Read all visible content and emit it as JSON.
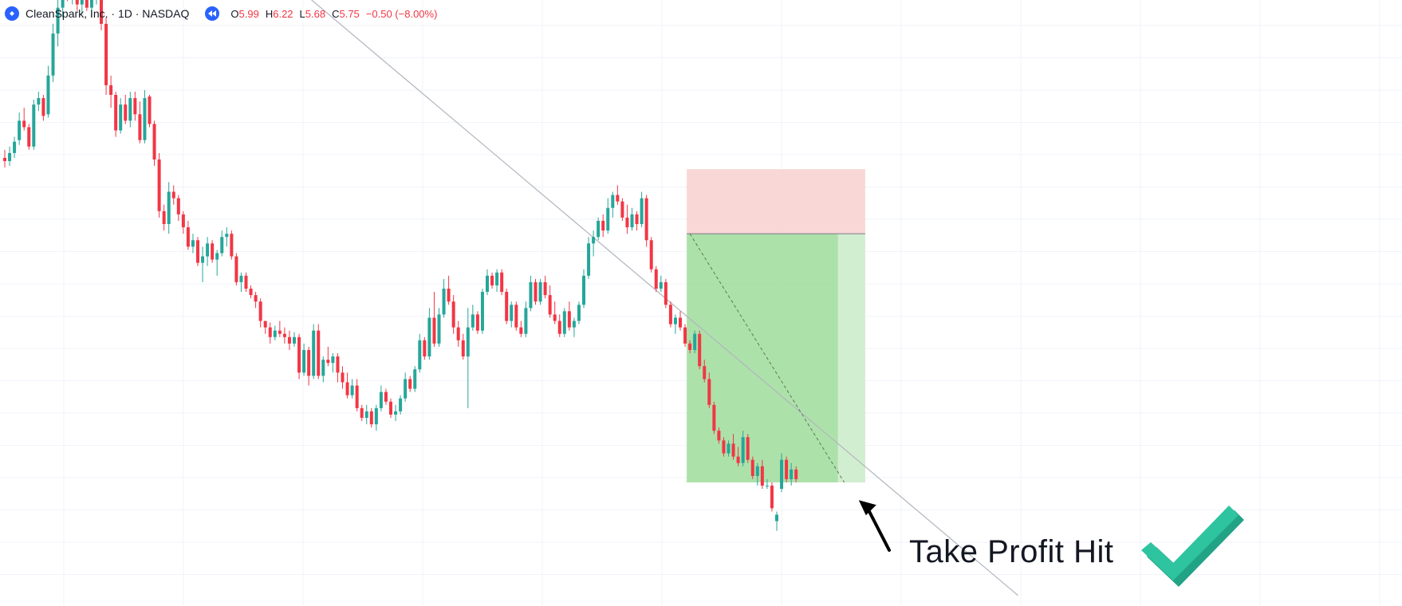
{
  "header": {
    "symbol": "CleanSpark, Inc. · 1D · NASDAQ",
    "ohlc": {
      "open_label": "O",
      "open": "5.99",
      "high_label": "H",
      "high": "6.22",
      "low_label": "L",
      "low": "5.68",
      "close_label": "C",
      "close": "5.75",
      "change": "−0.50 (−8.00%)"
    }
  },
  "annotation": {
    "text": "Take Profit Hit"
  },
  "colors": {
    "up": "#26a69a",
    "down": "#f23645",
    "stop_zone": "#f8c9c9",
    "profit_zone": "#9fdc9b",
    "trendline": "#b2b5be",
    "check": "#2ec4a0",
    "check_dark": "#22a386"
  },
  "chart_data": {
    "type": "candlestick",
    "title": "CleanSpark, Inc. · 1D · NASDAQ",
    "y_scale": "price",
    "grid": true,
    "candles": [
      {
        "o": 10.05,
        "h": 10.3,
        "l": 9.75,
        "c": 9.95
      },
      {
        "o": 9.95,
        "h": 10.4,
        "l": 9.8,
        "c": 10.2
      },
      {
        "o": 10.2,
        "h": 10.7,
        "l": 10.05,
        "c": 10.55
      },
      {
        "o": 10.6,
        "h": 11.45,
        "l": 10.45,
        "c": 11.2
      },
      {
        "o": 11.2,
        "h": 11.6,
        "l": 10.9,
        "c": 11.0
      },
      {
        "o": 11.0,
        "h": 11.1,
        "l": 10.3,
        "c": 10.4
      },
      {
        "o": 10.4,
        "h": 11.85,
        "l": 10.3,
        "c": 11.7
      },
      {
        "o": 11.7,
        "h": 12.1,
        "l": 11.5,
        "c": 11.9
      },
      {
        "o": 11.9,
        "h": 12.0,
        "l": 11.2,
        "c": 11.35
      },
      {
        "o": 11.4,
        "h": 12.9,
        "l": 11.3,
        "c": 12.6
      },
      {
        "o": 12.6,
        "h": 14.2,
        "l": 12.4,
        "c": 13.9
      },
      {
        "o": 13.9,
        "h": 15.1,
        "l": 13.5,
        "c": 14.7
      },
      {
        "o": 14.7,
        "h": 15.5,
        "l": 14.4,
        "c": 15.3
      },
      {
        "o": 15.3,
        "h": 15.8,
        "l": 14.9,
        "c": 15.1
      },
      {
        "o": 15.1,
        "h": 15.7,
        "l": 14.8,
        "c": 15.4
      },
      {
        "o": 15.4,
        "h": 15.6,
        "l": 14.6,
        "c": 14.8
      },
      {
        "o": 14.8,
        "h": 15.5,
        "l": 14.5,
        "c": 15.2
      },
      {
        "o": 15.2,
        "h": 15.4,
        "l": 14.6,
        "c": 14.7
      },
      {
        "o": 14.7,
        "h": 15.3,
        "l": 14.4,
        "c": 15.1
      },
      {
        "o": 15.1,
        "h": 15.6,
        "l": 14.8,
        "c": 15.4
      },
      {
        "o": 15.4,
        "h": 15.5,
        "l": 14.0,
        "c": 14.2
      },
      {
        "o": 14.2,
        "h": 14.4,
        "l": 12.0,
        "c": 12.3
      },
      {
        "o": 12.3,
        "h": 12.6,
        "l": 11.6,
        "c": 12.0
      },
      {
        "o": 12.0,
        "h": 12.1,
        "l": 10.7,
        "c": 10.9
      },
      {
        "o": 10.9,
        "h": 11.9,
        "l": 10.8,
        "c": 11.7
      },
      {
        "o": 11.7,
        "h": 12.0,
        "l": 11.1,
        "c": 11.2
      },
      {
        "o": 11.2,
        "h": 12.1,
        "l": 11.0,
        "c": 11.9
      },
      {
        "o": 11.9,
        "h": 12.1,
        "l": 11.2,
        "c": 11.4
      },
      {
        "o": 11.4,
        "h": 11.8,
        "l": 10.5,
        "c": 10.6
      },
      {
        "o": 10.6,
        "h": 12.15,
        "l": 10.5,
        "c": 11.9
      },
      {
        "o": 11.95,
        "h": 12.0,
        "l": 11.0,
        "c": 11.1
      },
      {
        "o": 11.1,
        "h": 11.2,
        "l": 9.8,
        "c": 10.0
      },
      {
        "o": 10.0,
        "h": 10.2,
        "l": 8.2,
        "c": 8.4
      },
      {
        "o": 8.4,
        "h": 8.6,
        "l": 7.8,
        "c": 8.0
      },
      {
        "o": 8.0,
        "h": 9.3,
        "l": 7.7,
        "c": 9.0
      },
      {
        "o": 9.0,
        "h": 9.2,
        "l": 8.6,
        "c": 8.8
      },
      {
        "o": 8.8,
        "h": 8.9,
        "l": 8.1,
        "c": 8.3
      },
      {
        "o": 8.3,
        "h": 8.4,
        "l": 7.7,
        "c": 7.9
      },
      {
        "o": 7.9,
        "h": 8.1,
        "l": 7.2,
        "c": 7.3
      },
      {
        "o": 7.3,
        "h": 7.7,
        "l": 7.1,
        "c": 7.5
      },
      {
        "o": 7.5,
        "h": 7.6,
        "l": 6.7,
        "c": 6.8
      },
      {
        "o": 6.8,
        "h": 7.3,
        "l": 6.2,
        "c": 7.0
      },
      {
        "o": 7.0,
        "h": 7.6,
        "l": 6.7,
        "c": 7.4
      },
      {
        "o": 7.4,
        "h": 7.5,
        "l": 6.8,
        "c": 6.9
      },
      {
        "o": 6.9,
        "h": 7.2,
        "l": 6.4,
        "c": 7.1
      },
      {
        "o": 7.1,
        "h": 7.8,
        "l": 7.0,
        "c": 7.6
      },
      {
        "o": 7.6,
        "h": 7.9,
        "l": 7.3,
        "c": 7.7
      },
      {
        "o": 7.7,
        "h": 7.8,
        "l": 6.9,
        "c": 7.0
      },
      {
        "o": 7.0,
        "h": 7.1,
        "l": 6.1,
        "c": 6.2
      },
      {
        "o": 6.2,
        "h": 6.5,
        "l": 5.9,
        "c": 6.4
      },
      {
        "o": 6.4,
        "h": 6.5,
        "l": 5.9,
        "c": 6.0
      },
      {
        "o": 6.0,
        "h": 6.1,
        "l": 5.7,
        "c": 5.8
      },
      {
        "o": 5.8,
        "h": 5.9,
        "l": 5.4,
        "c": 5.6
      },
      {
        "o": 5.6,
        "h": 5.7,
        "l": 4.8,
        "c": 5.0
      },
      {
        "o": 5.0,
        "h": 4.9,
        "l": 4.6,
        "c": 4.8
      },
      {
        "o": 4.8,
        "h": 4.95,
        "l": 4.3,
        "c": 4.5
      },
      {
        "o": 4.5,
        "h": 4.85,
        "l": 4.4,
        "c": 4.7
      },
      {
        "o": 4.7,
        "h": 5.0,
        "l": 4.5,
        "c": 4.6
      },
      {
        "o": 4.6,
        "h": 4.8,
        "l": 4.3,
        "c": 4.5
      },
      {
        "o": 4.5,
        "h": 4.7,
        "l": 4.1,
        "c": 4.3
      },
      {
        "o": 4.3,
        "h": 4.65,
        "l": 4.2,
        "c": 4.5
      },
      {
        "o": 4.5,
        "h": 4.6,
        "l": 3.2,
        "c": 3.4
      },
      {
        "o": 3.4,
        "h": 4.3,
        "l": 3.3,
        "c": 4.1
      },
      {
        "o": 4.1,
        "h": 4.2,
        "l": 3.0,
        "c": 3.3
      },
      {
        "o": 3.3,
        "h": 4.9,
        "l": 3.2,
        "c": 4.7
      },
      {
        "o": 4.7,
        "h": 4.9,
        "l": 3.2,
        "c": 3.3
      },
      {
        "o": 3.3,
        "h": 3.9,
        "l": 3.1,
        "c": 3.8
      },
      {
        "o": 3.8,
        "h": 4.2,
        "l": 3.6,
        "c": 3.7
      },
      {
        "o": 3.7,
        "h": 4.0,
        "l": 3.4,
        "c": 3.9
      },
      {
        "o": 3.9,
        "h": 4.0,
        "l": 3.1,
        "c": 3.4
      },
      {
        "o": 3.4,
        "h": 3.6,
        "l": 2.9,
        "c": 3.1
      },
      {
        "o": 3.1,
        "h": 3.4,
        "l": 2.6,
        "c": 2.7
      },
      {
        "o": 2.7,
        "h": 3.2,
        "l": 2.6,
        "c": 3.0
      },
      {
        "o": 3.0,
        "h": 3.2,
        "l": 2.2,
        "c": 2.3
      },
      {
        "o": 2.3,
        "h": 2.4,
        "l": 1.9,
        "c": 2.0
      },
      {
        "o": 2.0,
        "h": 2.4,
        "l": 1.8,
        "c": 2.2
      },
      {
        "o": 2.2,
        "h": 2.3,
        "l": 1.7,
        "c": 1.8
      },
      {
        "o": 1.8,
        "h": 2.4,
        "l": 1.6,
        "c": 2.3
      },
      {
        "o": 2.3,
        "h": 3.0,
        "l": 2.2,
        "c": 2.8
      },
      {
        "o": 2.8,
        "h": 2.9,
        "l": 2.4,
        "c": 2.5
      },
      {
        "o": 2.5,
        "h": 2.6,
        "l": 2.0,
        "c": 2.1
      },
      {
        "o": 2.1,
        "h": 2.4,
        "l": 1.9,
        "c": 2.2
      },
      {
        "o": 2.2,
        "h": 2.7,
        "l": 2.1,
        "c": 2.6
      },
      {
        "o": 2.6,
        "h": 3.4,
        "l": 2.5,
        "c": 3.2
      },
      {
        "o": 3.2,
        "h": 3.3,
        "l": 2.8,
        "c": 2.9
      },
      {
        "o": 2.9,
        "h": 3.6,
        "l": 2.8,
        "c": 3.5
      },
      {
        "o": 3.5,
        "h": 4.6,
        "l": 3.4,
        "c": 4.4
      },
      {
        "o": 4.4,
        "h": 4.5,
        "l": 3.8,
        "c": 3.9
      },
      {
        "o": 3.9,
        "h": 5.4,
        "l": 3.8,
        "c": 5.1
      },
      {
        "o": 5.1,
        "h": 5.9,
        "l": 4.2,
        "c": 4.3
      },
      {
        "o": 4.3,
        "h": 5.4,
        "l": 4.2,
        "c": 5.2
      },
      {
        "o": 5.2,
        "h": 6.3,
        "l": 5.1,
        "c": 6.0
      },
      {
        "o": 6.0,
        "h": 6.4,
        "l": 5.5,
        "c": 5.6
      },
      {
        "o": 5.6,
        "h": 5.8,
        "l": 4.6,
        "c": 4.8
      },
      {
        "o": 4.8,
        "h": 5.0,
        "l": 4.2,
        "c": 4.4
      },
      {
        "o": 4.4,
        "h": 4.6,
        "l": 3.8,
        "c": 3.9
      },
      {
        "o": 3.9,
        "h": 5.4,
        "l": 2.3,
        "c": 4.8
      },
      {
        "o": 4.8,
        "h": 5.5,
        "l": 4.7,
        "c": 5.2
      },
      {
        "o": 5.2,
        "h": 5.3,
        "l": 4.6,
        "c": 4.7
      },
      {
        "o": 4.7,
        "h": 6.0,
        "l": 4.6,
        "c": 5.9
      },
      {
        "o": 5.9,
        "h": 6.6,
        "l": 5.8,
        "c": 6.4
      },
      {
        "o": 6.4,
        "h": 6.5,
        "l": 6.0,
        "c": 6.1
      },
      {
        "o": 6.1,
        "h": 6.6,
        "l": 5.9,
        "c": 6.5
      },
      {
        "o": 6.5,
        "h": 6.6,
        "l": 5.8,
        "c": 5.9
      },
      {
        "o": 5.9,
        "h": 6.0,
        "l": 4.9,
        "c": 5.0
      },
      {
        "o": 5.0,
        "h": 5.6,
        "l": 4.8,
        "c": 5.5
      },
      {
        "o": 5.5,
        "h": 5.6,
        "l": 4.7,
        "c": 4.8
      },
      {
        "o": 4.8,
        "h": 5.0,
        "l": 4.5,
        "c": 4.6
      },
      {
        "o": 4.6,
        "h": 5.6,
        "l": 4.5,
        "c": 5.4
      },
      {
        "o": 5.4,
        "h": 6.4,
        "l": 5.3,
        "c": 6.2
      },
      {
        "o": 6.2,
        "h": 6.3,
        "l": 5.5,
        "c": 5.6
      },
      {
        "o": 5.6,
        "h": 6.3,
        "l": 5.5,
        "c": 6.2
      },
      {
        "o": 6.2,
        "h": 6.4,
        "l": 5.7,
        "c": 5.8
      },
      {
        "o": 5.8,
        "h": 6.1,
        "l": 5.1,
        "c": 5.2
      },
      {
        "o": 5.2,
        "h": 5.6,
        "l": 4.9,
        "c": 5.0
      },
      {
        "o": 5.0,
        "h": 5.2,
        "l": 4.5,
        "c": 4.6
      },
      {
        "o": 4.6,
        "h": 5.4,
        "l": 4.5,
        "c": 5.3
      },
      {
        "o": 5.3,
        "h": 5.6,
        "l": 4.7,
        "c": 4.8
      },
      {
        "o": 4.8,
        "h": 5.1,
        "l": 4.5,
        "c": 5.0
      },
      {
        "o": 5.0,
        "h": 5.6,
        "l": 4.9,
        "c": 5.5
      },
      {
        "o": 5.5,
        "h": 6.6,
        "l": 5.4,
        "c": 6.4
      },
      {
        "o": 6.4,
        "h": 7.6,
        "l": 6.3,
        "c": 7.4
      },
      {
        "o": 7.4,
        "h": 7.8,
        "l": 7.0,
        "c": 7.6
      },
      {
        "o": 7.6,
        "h": 8.2,
        "l": 7.5,
        "c": 8.1
      },
      {
        "o": 8.1,
        "h": 8.3,
        "l": 7.6,
        "c": 7.8
      },
      {
        "o": 7.8,
        "h": 8.8,
        "l": 7.7,
        "c": 8.5
      },
      {
        "o": 8.5,
        "h": 9.0,
        "l": 8.2,
        "c": 8.9
      },
      {
        "o": 8.9,
        "h": 9.2,
        "l": 8.6,
        "c": 8.7
      },
      {
        "o": 8.7,
        "h": 8.8,
        "l": 8.1,
        "c": 8.2
      },
      {
        "o": 8.2,
        "h": 8.6,
        "l": 7.7,
        "c": 7.9
      },
      {
        "o": 7.9,
        "h": 8.5,
        "l": 7.8,
        "c": 8.3
      },
      {
        "o": 8.3,
        "h": 8.4,
        "l": 7.8,
        "c": 8.0
      },
      {
        "o": 8.0,
        "h": 9.0,
        "l": 7.9,
        "c": 8.8
      },
      {
        "o": 8.8,
        "h": 8.9,
        "l": 7.3,
        "c": 7.5
      },
      {
        "o": 7.5,
        "h": 7.6,
        "l": 6.5,
        "c": 6.6
      },
      {
        "o": 6.6,
        "h": 6.7,
        "l": 5.9,
        "c": 6.0
      },
      {
        "o": 6.0,
        "h": 6.4,
        "l": 5.9,
        "c": 6.2
      },
      {
        "o": 6.2,
        "h": 6.3,
        "l": 5.4,
        "c": 5.5
      },
      {
        "o": 5.5,
        "h": 5.6,
        "l": 4.8,
        "c": 4.9
      },
      {
        "o": 4.9,
        "h": 5.2,
        "l": 4.6,
        "c": 5.1
      },
      {
        "o": 5.1,
        "h": 5.3,
        "l": 4.7,
        "c": 4.8
      },
      {
        "o": 4.8,
        "h": 4.9,
        "l": 4.2,
        "c": 4.3
      },
      {
        "o": 4.3,
        "h": 4.4,
        "l": 4.0,
        "c": 4.1
      },
      {
        "o": 4.1,
        "h": 4.7,
        "l": 4.0,
        "c": 4.6
      },
      {
        "o": 4.6,
        "h": 4.7,
        "l": 3.5,
        "c": 3.6
      },
      {
        "o": 3.6,
        "h": 3.8,
        "l": 3.1,
        "c": 3.2
      },
      {
        "o": 3.2,
        "h": 3.4,
        "l": 2.3,
        "c": 2.4
      },
      {
        "o": 2.4,
        "h": 2.5,
        "l": 1.5,
        "c": 1.6
      },
      {
        "o": 1.6,
        "h": 1.7,
        "l": 1.2,
        "c": 1.3
      },
      {
        "o": 1.3,
        "h": 1.4,
        "l": 0.8,
        "c": 0.9
      },
      {
        "o": 0.9,
        "h": 1.3,
        "l": 0.8,
        "c": 1.2
      },
      {
        "o": 1.2,
        "h": 1.5,
        "l": 0.7,
        "c": 0.8
      },
      {
        "o": 0.8,
        "h": 1.1,
        "l": 0.5,
        "c": 0.6
      },
      {
        "o": 0.6,
        "h": 1.6,
        "l": 0.5,
        "c": 1.4
      },
      {
        "o": 1.4,
        "h": 1.5,
        "l": 0.6,
        "c": 0.7
      },
      {
        "o": 0.7,
        "h": 0.8,
        "l": 0.1,
        "c": 0.2
      },
      {
        "o": 0.2,
        "h": 0.6,
        "l": -0.1,
        "c": 0.5
      },
      {
        "o": 0.5,
        "h": 0.7,
        "l": -0.2,
        "c": -0.1
      },
      {
        "o": -0.1,
        "h": 0.1,
        "l": -0.2,
        "c": -0.1
      },
      {
        "o": -0.1,
        "h": 0.0,
        "l": -0.9,
        "c": -0.8
      },
      {
        "o": -1.2,
        "h": -0.9,
        "l": -1.5,
        "c": -1.0
      },
      {
        "o": -0.2,
        "h": 0.9,
        "l": -0.3,
        "c": 0.7
      },
      {
        "o": 0.7,
        "h": 0.8,
        "l": 0.0,
        "c": 0.1
      },
      {
        "o": 0.1,
        "h": 0.6,
        "l": -0.1,
        "c": 0.4
      },
      {
        "o": 0.4,
        "h": 0.5,
        "l": 0.0,
        "c": 0.1
      }
    ],
    "position": {
      "type": "short",
      "entry_index": 142,
      "end_index": 178,
      "entry_price": 7.7,
      "stop_price": 9.7,
      "target_price": 0.0,
      "highlight_from_index": 173
    },
    "trendline": {
      "from_index": 25,
      "from_price": 19.8,
      "to_index": 210,
      "to_price": -3.5
    },
    "trade_path": {
      "from_index": 142,
      "from_price": 7.7,
      "to_index": 174,
      "to_price": 0.0
    },
    "arrow": {
      "to_index": 176,
      "to_price": -0.5
    }
  }
}
